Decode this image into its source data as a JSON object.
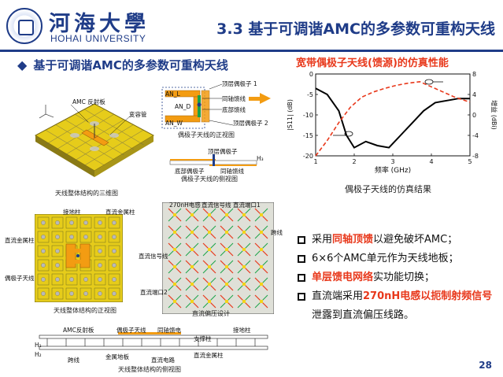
{
  "header": {
    "logo_cn": "河海大學",
    "logo_en": "HOHAI UNIVERSITY",
    "slide_title": "3.3 基于可调谐AMC的多参数可重构天线"
  },
  "section": {
    "heading": "基于可调谐AMC的多参数可重构天线"
  },
  "fig3d": {
    "label_amc": "AMC 反射板",
    "label_varactor": "变容管",
    "caption": "天线整体结构的三维图"
  },
  "dipole_front": {
    "label_top_arm": "顶层偶极子 1",
    "label_coax": "同轴馈线",
    "label_bottom_feed": "底部馈线",
    "label_top_arm2": "顶层偶极子 2",
    "label_anl": "AN_L",
    "label_and": "AN_D",
    "label_anw": "AN_W",
    "caption": "偶极子天线的正视图"
  },
  "dipole_side": {
    "label_top": "顶层偶极子",
    "label_bottom": "底部偶极子",
    "label_coax": "同轴馈线",
    "label_h": "H₃",
    "caption": "偶极子天线的侧视图"
  },
  "topview": {
    "label_ground_pin": "接地柱",
    "label_metal_pin": "直流金属柱",
    "label_dc_metal": "直流金属柱",
    "label_dipole": "偶极子天线",
    "caption": "天线整体结构的正视图"
  },
  "biasview": {
    "label_inductor": "270nH电感",
    "label_signal": "直流信号线",
    "label_port1": "直流端口1",
    "label_jumper": "跨线",
    "label_dc_signal2": "直流信号线",
    "label_port2": "直流端口2",
    "caption": "直流偏压设计"
  },
  "sideview": {
    "label_amc": "AMC反射板",
    "label_dipole": "偶极子天线",
    "label_coax": "同轴馈电",
    "label_support": "支撑柱",
    "label_ground": "接地柱",
    "label_jumper": "跨线",
    "label_metal_floor": "金属地板",
    "label_dc_line": "直流电路",
    "label_dc_pin": "直流金属柱",
    "label_h1": "H₁",
    "label_h2": "H₂",
    "caption": "天线整体结构的侧视图"
  },
  "sim": {
    "title": "宽带偶极子天线(馈源)的仿真性能",
    "caption": "偶极子天线的仿真结果"
  },
  "chart_data": {
    "type": "line",
    "xlabel": "频率 (GHz)",
    "ylabel_left": "|S11| (dB)",
    "ylabel_right": "增益 (dBi)",
    "xlim": [
      1,
      5
    ],
    "ylim_left": [
      -20,
      0
    ],
    "ylim_right": [
      -8,
      8
    ],
    "x_ticks": [
      1,
      2,
      3,
      4,
      5
    ],
    "y_ticks_left": [
      0,
      -5,
      -10,
      -15,
      -20
    ],
    "y_ticks_right": [
      8,
      4,
      0,
      -4,
      -8
    ],
    "series": [
      {
        "axis": "left",
        "color": "#000000",
        "x": [
          1.0,
          1.3,
          1.6,
          1.8,
          2.0,
          2.3,
          2.6,
          2.9,
          3.2,
          3.5,
          3.8,
          4.1,
          4.4,
          4.7,
          5.0
        ],
        "y": [
          -3.5,
          -5.0,
          -9.0,
          -15.0,
          -18.0,
          -16.5,
          -17.5,
          -18.0,
          -15.0,
          -12.0,
          -9.0,
          -7.0,
          -6.5,
          -6.0,
          -6.0
        ]
      },
      {
        "axis": "right",
        "color": "#e8381b",
        "dashed": true,
        "x": [
          1.0,
          1.3,
          1.6,
          1.9,
          2.2,
          2.5,
          2.8,
          3.1,
          3.4,
          3.7,
          4.0,
          4.3,
          4.6,
          5.0
        ],
        "y": [
          -8.0,
          -5.0,
          -1.5,
          1.5,
          3.5,
          4.5,
          5.2,
          5.8,
          6.2,
          6.5,
          5.5,
          4.5,
          3.5,
          2.5
        ]
      }
    ],
    "grid": false
  },
  "bullets": [
    {
      "pre": "采用",
      "em": "同轴顶馈",
      "post": "以避免破坏AMC；"
    },
    {
      "pre": "6×6个AMC单元作为天线地板；",
      "em": "",
      "post": ""
    },
    {
      "pre": "",
      "em": "单层馈电网络",
      "post": "实功能切换；"
    },
    {
      "pre": "直流端采用",
      "em": "270nH电感以扼制射频信号",
      "post": "泄露到直流偏压线路。"
    }
  ],
  "page_number": "28",
  "colors": {
    "brand": "#1f3c88",
    "accent": "#e8381b",
    "amc_yellow": "#f2d31b",
    "dipole_orange": "#f39c12"
  }
}
